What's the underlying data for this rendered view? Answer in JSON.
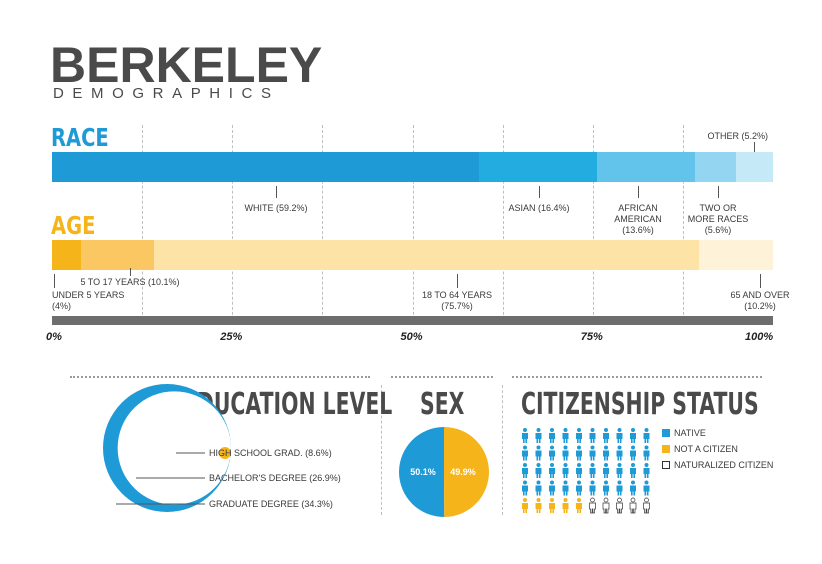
{
  "title": "BERKELEY",
  "subtitle": "DEMOGRAPHICS",
  "colors": {
    "race_dark": "#1e9ad6",
    "age_accent": "#f6b41b",
    "gray": "#6d6d6d"
  },
  "chart_data": [
    {
      "type": "bar",
      "stacked": true,
      "orientation": "horizontal",
      "title": "RACE",
      "categories": [
        "WHITE",
        "ASIAN",
        "AFRICAN AMERICAN",
        "TWO OR MORE RACES",
        "OTHER"
      ],
      "values": [
        59.2,
        16.4,
        13.6,
        5.6,
        5.2
      ],
      "labels": [
        "WHITE (59.2%)",
        "ASIAN (16.4%)",
        "AFRICAN\nAMERICAN\n(13.6%)",
        "TWO OR\nMORE RACES\n(5.6%)",
        "OTHER (5.2%)"
      ],
      "colors": [
        "#1e9ad6",
        "#23acdf",
        "#62c4ea",
        "#94d6f2",
        "#c6e9f8"
      ],
      "xlim": [
        0,
        100
      ]
    },
    {
      "type": "bar",
      "stacked": true,
      "orientation": "horizontal",
      "title": "AGE",
      "categories": [
        "UNDER 5 YEARS",
        "5 TO 17 YEARS",
        "18 TO 64 YEARS",
        "65 AND OVER"
      ],
      "values": [
        4,
        10.1,
        75.7,
        10.2
      ],
      "labels": [
        "UNDER 5 YEARS\n(4%)",
        "5 TO 17 YEARS (10.1%)",
        "18 TO 64 YEARS\n(75.7%)",
        "65 AND OVER\n(10.2%)"
      ],
      "colors": [
        "#f6b41b",
        "#fbc763",
        "#fde4a6",
        "#fef2d9"
      ],
      "xlim": [
        0,
        100
      ],
      "xticks": [
        "0%",
        "25%",
        "50%",
        "75%",
        "100%"
      ]
    },
    {
      "type": "pie",
      "title": "EDUCATION LEVEL",
      "categories": [
        "HIGH SCHOOL GRAD.",
        "BACHELOR'S DEGREE",
        "GRADUATE DEGREE"
      ],
      "values": [
        8.6,
        26.9,
        34.3
      ],
      "labels": [
        "HIGH SCHOOL GRAD. (8.6%)",
        "BACHELOR'S DEGREE (26.9%)",
        "GRADUATE DEGREE (34.3%)"
      ],
      "colors": [
        "#f6b41b",
        "#ffffff",
        "#1e9ad6"
      ]
    },
    {
      "type": "pie",
      "title": "SEX",
      "values": [
        50.1,
        49.9
      ],
      "labels": [
        "50.1%",
        "49.9%"
      ],
      "colors": [
        "#1e9ad6",
        "#f6b41b"
      ]
    },
    {
      "type": "pictogram",
      "title": "CITIZENSHIP STATUS",
      "categories": [
        "NATIVE",
        "NOT A CITIZEN",
        "NATURALIZED CITIZEN"
      ],
      "values": [
        80,
        10,
        10
      ],
      "colors": [
        "#1e9ad6",
        "#f6b41b",
        "#ffffff"
      ]
    }
  ]
}
